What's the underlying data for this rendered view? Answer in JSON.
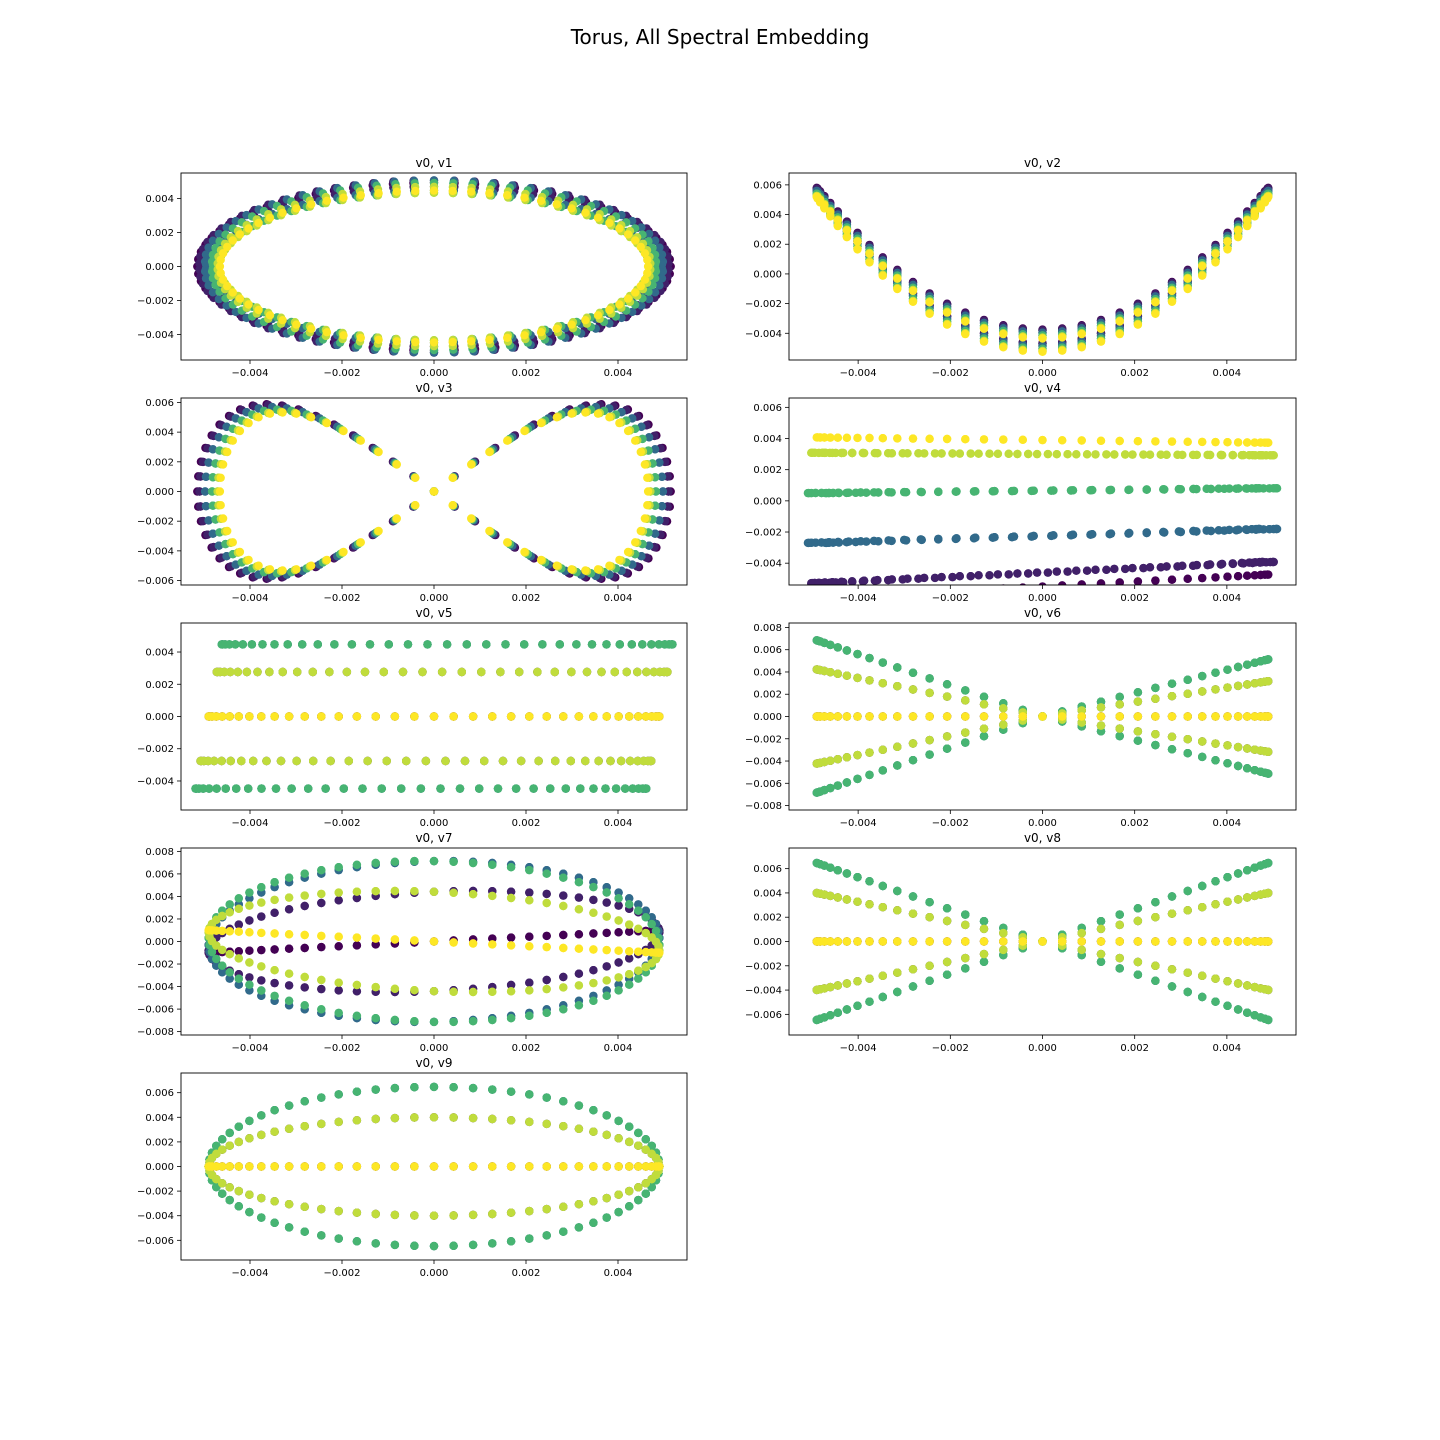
{
  "figure": {
    "title": "Torus, All Spectral Embedding",
    "colormap": [
      "#440154",
      "#3b528b",
      "#21918c",
      "#5ec962",
      "#fde725"
    ]
  },
  "chart_data": [
    {
      "type": "scatter",
      "title": "v0, v1",
      "pattern": "ring",
      "xlim": [
        -0.0055,
        0.0055
      ],
      "ylim": [
        -0.0055,
        0.0055
      ],
      "xticks": [
        -0.004,
        -0.002,
        0.0,
        0.002,
        0.004
      ],
      "xtick_labels": [
        "−0.004",
        "−0.002",
        "0.000",
        "0.002",
        "0.004"
      ],
      "yticks": [
        -0.004,
        -0.002,
        0.0,
        0.002,
        0.004
      ],
      "ytick_labels": [
        "−0.004",
        "−0.002",
        "0.000",
        "0.002",
        "0.004"
      ]
    },
    {
      "type": "scatter",
      "title": "v0, v2",
      "pattern": "parabola",
      "xlim": [
        -0.0055,
        0.0055
      ],
      "ylim": [
        -0.0058,
        0.0068
      ],
      "xticks": [
        -0.004,
        -0.002,
        0.0,
        0.002,
        0.004
      ],
      "xtick_labels": [
        "−0.004",
        "−0.002",
        "0.000",
        "0.002",
        "0.004"
      ],
      "yticks": [
        -0.004,
        -0.002,
        0.0,
        0.002,
        0.004,
        0.006
      ],
      "ytick_labels": [
        "−0.004",
        "−0.002",
        "0.000",
        "0.002",
        "0.004",
        "0.006"
      ]
    },
    {
      "type": "scatter",
      "title": "v0, v3",
      "pattern": "lemniscate",
      "xlim": [
        -0.0055,
        0.0055
      ],
      "ylim": [
        -0.0063,
        0.0063
      ],
      "xticks": [
        -0.004,
        -0.002,
        0.0,
        0.002,
        0.004
      ],
      "xtick_labels": [
        "−0.004",
        "−0.002",
        "0.000",
        "0.002",
        "0.004"
      ],
      "yticks": [
        -0.006,
        -0.004,
        -0.002,
        0.0,
        0.002,
        0.004,
        0.006
      ],
      "ytick_labels": [
        "−0.006",
        "−0.004",
        "−0.002",
        "0.000",
        "0.002",
        "0.004",
        "0.006"
      ]
    },
    {
      "type": "scatter",
      "title": "v0, v4",
      "pattern": "band",
      "xlim": [
        -0.0055,
        0.0055
      ],
      "ylim": [
        -0.0054,
        0.0066
      ],
      "xticks": [
        -0.004,
        -0.002,
        0.0,
        0.002,
        0.004
      ],
      "xtick_labels": [
        "−0.004",
        "−0.002",
        "0.000",
        "0.002",
        "0.004"
      ],
      "yticks": [
        -0.004,
        -0.002,
        0.0,
        0.002,
        0.004,
        0.006
      ],
      "ytick_labels": [
        "−0.004",
        "−0.002",
        "0.000",
        "0.002",
        "0.004",
        "0.006"
      ]
    },
    {
      "type": "scatter",
      "title": "v0, v5",
      "pattern": "cylinder",
      "xlim": [
        -0.0055,
        0.0055
      ],
      "ylim": [
        -0.0058,
        0.0058
      ],
      "xticks": [
        -0.004,
        -0.002,
        0.0,
        0.002,
        0.004
      ],
      "xtick_labels": [
        "−0.004",
        "−0.002",
        "0.000",
        "0.002",
        "0.004"
      ],
      "yticks": [
        -0.004,
        -0.002,
        0.0,
        0.002,
        0.004
      ],
      "ytick_labels": [
        "−0.004",
        "−0.002",
        "0.000",
        "0.002",
        "0.004"
      ]
    },
    {
      "type": "scatter",
      "title": "v0, v6",
      "pattern": "hourglass-twist",
      "xlim": [
        -0.0055,
        0.0055
      ],
      "ylim": [
        -0.0084,
        0.0084
      ],
      "xticks": [
        -0.004,
        -0.002,
        0.0,
        0.002,
        0.004
      ],
      "xtick_labels": [
        "−0.004",
        "−0.002",
        "0.000",
        "0.002",
        "0.004"
      ],
      "yticks": [
        -0.008,
        -0.006,
        -0.004,
        -0.002,
        0.0,
        0.002,
        0.004,
        0.006,
        0.008
      ],
      "ytick_labels": [
        "−0.008",
        "−0.006",
        "−0.004",
        "−0.002",
        "0.000",
        "0.002",
        "0.004",
        "0.006",
        "0.008"
      ]
    },
    {
      "type": "scatter",
      "title": "v0, v7",
      "pattern": "lens-twist",
      "xlim": [
        -0.0055,
        0.0055
      ],
      "ylim": [
        -0.0083,
        0.0083
      ],
      "xticks": [
        -0.004,
        -0.002,
        0.0,
        0.002,
        0.004
      ],
      "xtick_labels": [
        "−0.004",
        "−0.002",
        "0.000",
        "0.002",
        "0.004"
      ],
      "yticks": [
        -0.008,
        -0.006,
        -0.004,
        -0.002,
        0.0,
        0.002,
        0.004,
        0.006,
        0.008
      ],
      "ytick_labels": [
        "−0.008",
        "−0.006",
        "−0.004",
        "−0.002",
        "0.000",
        "0.002",
        "0.004",
        "0.006",
        "0.008"
      ]
    },
    {
      "type": "scatter",
      "title": "v0, v8",
      "pattern": "hourglass",
      "xlim": [
        -0.0055,
        0.0055
      ],
      "ylim": [
        -0.0077,
        0.0077
      ],
      "xticks": [
        -0.004,
        -0.002,
        0.0,
        0.002,
        0.004
      ],
      "xtick_labels": [
        "−0.004",
        "−0.002",
        "0.000",
        "0.002",
        "0.004"
      ],
      "yticks": [
        -0.006,
        -0.004,
        -0.002,
        0.0,
        0.002,
        0.004,
        0.006
      ],
      "ytick_labels": [
        "−0.006",
        "−0.004",
        "−0.002",
        "0.000",
        "0.002",
        "0.004",
        "0.006"
      ]
    },
    {
      "type": "scatter",
      "title": "v0, v9",
      "pattern": "lens",
      "xlim": [
        -0.0055,
        0.0055
      ],
      "ylim": [
        -0.0076,
        0.0076
      ],
      "xticks": [
        -0.004,
        -0.002,
        0.0,
        0.002,
        0.004
      ],
      "xtick_labels": [
        "−0.004",
        "−0.002",
        "0.000",
        "0.002",
        "0.004"
      ],
      "yticks": [
        -0.006,
        -0.004,
        -0.002,
        0.0,
        0.002,
        0.004,
        0.006
      ],
      "ytick_labels": [
        "−0.006",
        "−0.004",
        "−0.002",
        "0.000",
        "0.002",
        "0.004",
        "0.006"
      ]
    }
  ]
}
